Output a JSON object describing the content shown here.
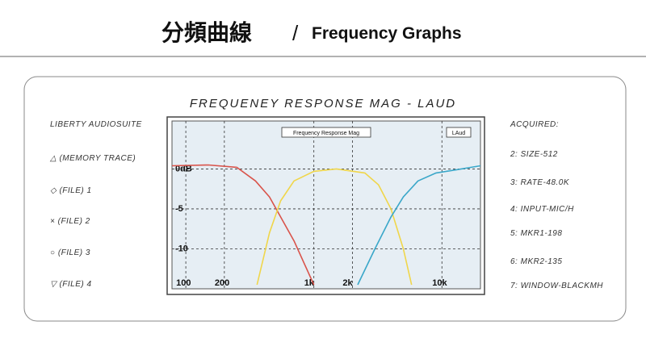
{
  "header": {
    "title_cn": "分頻曲線",
    "separator": "/",
    "title_en": "Frequency Graphs"
  },
  "panel": {
    "title": "FREQUENEY RESPONSE MAG - LAUD",
    "left": [
      "LIBERTY AUDIOSUITE",
      "△ (MEMORY TRACE)",
      "◇ (FILE) 1",
      "× (FILE) 2",
      "○ (FILE) 3",
      "▽ (FILE) 4"
    ],
    "right": [
      "ACQUIRED:",
      "2: SIZE-512",
      "3: RATE-48.0K",
      "4: INPUT-MIC/H",
      "5: MKR1-198",
      "6: MKR2-135",
      "7: WINDOW-BLACKMH"
    ]
  },
  "chart_data": {
    "type": "line",
    "title": "Frequency Response Mag",
    "subtitle": "LAud",
    "xscale": "log",
    "grid": true,
    "xlim": [
      78,
      20000
    ],
    "xticks": [
      100,
      200,
      {
        "value": 1000,
        "label": "1k"
      },
      {
        "value": 2000,
        "label": "2k"
      },
      {
        "value": 10000,
        "label": "10k"
      }
    ],
    "ylim": [
      -15,
      6
    ],
    "yticks": [
      {
        "value": 0,
        "label": "0dB"
      },
      -5,
      -10
    ],
    "series": [
      {
        "color": "#d9534a",
        "x": [
          78,
          150,
          250,
          350,
          450,
          550,
          700,
          850,
          1000
        ],
        "values": [
          0.4,
          0.5,
          0.2,
          -1.5,
          -3.5,
          -6,
          -9,
          -12,
          -14.5
        ]
      },
      {
        "color": "#f0d64a",
        "x": [
          360,
          450,
          550,
          700,
          1000,
          1500,
          2500,
          3200,
          4000,
          5000,
          5800
        ],
        "values": [
          -14.5,
          -8,
          -4,
          -1.5,
          -0.3,
          0,
          -0.5,
          -2,
          -5,
          -10,
          -14.5
        ]
      },
      {
        "color": "#3aa7c9",
        "x": [
          2200,
          3000,
          4000,
          5000,
          6500,
          9000,
          13000,
          20000
        ],
        "values": [
          -14.5,
          -10,
          -6,
          -3.5,
          -1.5,
          -0.5,
          -0.1,
          0.4
        ]
      }
    ]
  }
}
